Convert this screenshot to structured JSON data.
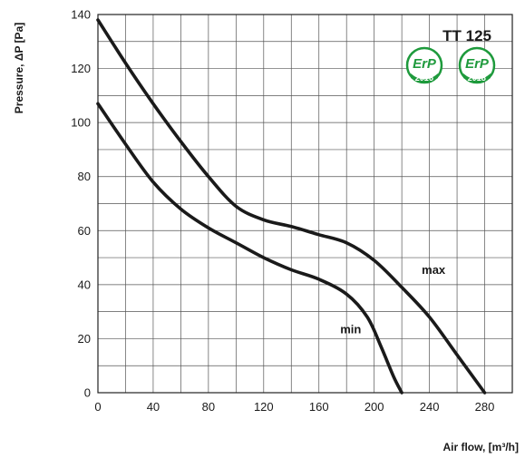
{
  "chart_data": {
    "type": "line",
    "title": "TT 125",
    "xlabel": "Air flow, [m³/h]",
    "ylabel": "Pressure, ΔP [Pa]",
    "xlim": [
      0,
      300
    ],
    "ylim": [
      0,
      140
    ],
    "x_ticks": [
      0,
      40,
      80,
      120,
      160,
      200,
      240,
      280
    ],
    "y_ticks": [
      0,
      20,
      40,
      60,
      80,
      100,
      120,
      140
    ],
    "grid": true,
    "series": [
      {
        "name": "max",
        "points": [
          [
            0,
            138
          ],
          [
            20,
            122
          ],
          [
            40,
            107
          ],
          [
            60,
            93
          ],
          [
            80,
            80
          ],
          [
            100,
            69
          ],
          [
            120,
            64
          ],
          [
            140,
            61.5
          ],
          [
            160,
            58.5
          ],
          [
            180,
            55.5
          ],
          [
            200,
            49
          ],
          [
            220,
            39
          ],
          [
            240,
            28
          ],
          [
            260,
            14
          ],
          [
            280,
            0
          ]
        ]
      },
      {
        "name": "min",
        "points": [
          [
            0,
            107
          ],
          [
            20,
            92
          ],
          [
            40,
            78
          ],
          [
            60,
            68
          ],
          [
            80,
            61
          ],
          [
            100,
            55.5
          ],
          [
            120,
            50
          ],
          [
            140,
            45.5
          ],
          [
            160,
            42
          ],
          [
            180,
            36.5
          ],
          [
            195,
            28
          ],
          [
            205,
            17
          ],
          [
            214,
            6
          ],
          [
            220,
            0
          ]
        ]
      }
    ]
  },
  "badges": [
    {
      "top": "ErP",
      "year": "2016",
      "color": "#1e9a3c"
    },
    {
      "top": "ErP",
      "year": "2018",
      "color": "#1e9a3c"
    }
  ]
}
